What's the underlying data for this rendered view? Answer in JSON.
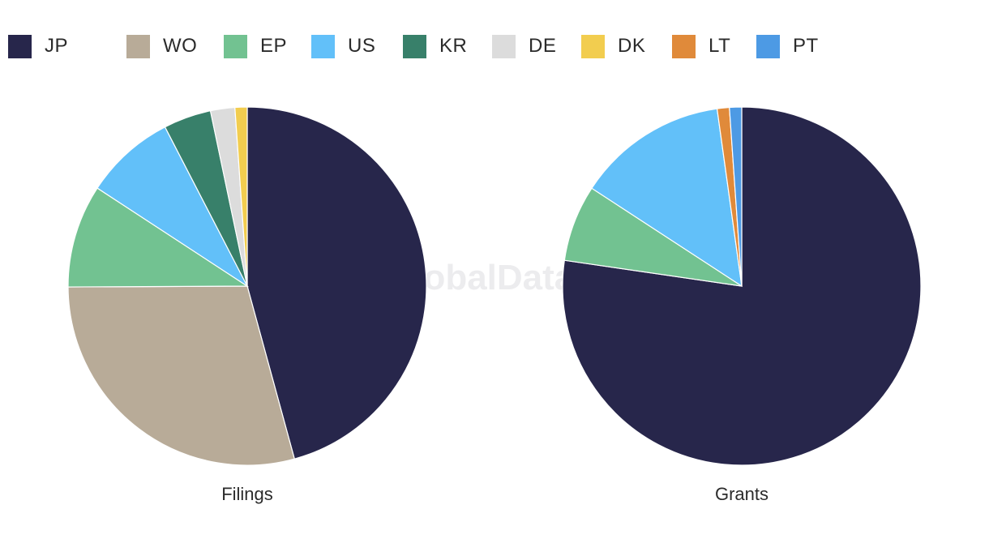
{
  "legend": [
    {
      "code": "JP",
      "color": "#27264b"
    },
    {
      "code": "WO",
      "color": "#b8ab98"
    },
    {
      "code": "EP",
      "color": "#72c291"
    },
    {
      "code": "US",
      "color": "#62c0f9"
    },
    {
      "code": "KR",
      "color": "#38806a"
    },
    {
      "code": "DE",
      "color": "#dcdcdc"
    },
    {
      "code": "DK",
      "color": "#f2cd4f"
    },
    {
      "code": "LT",
      "color": "#e08a3a"
    },
    {
      "code": "PT",
      "color": "#4d9ae4"
    }
  ],
  "watermark": "GlobalData",
  "chart_data": [
    {
      "type": "pie",
      "title": "Filings",
      "slices": [
        {
          "name": "JP",
          "value": 45.8
        },
        {
          "name": "WO",
          "value": 29.2
        },
        {
          "name": "EP",
          "value": 9.3
        },
        {
          "name": "US",
          "value": 8.2
        },
        {
          "name": "KR",
          "value": 4.3
        },
        {
          "name": "DE",
          "value": 2.2
        },
        {
          "name": "DK",
          "value": 1.1
        }
      ]
    },
    {
      "type": "pie",
      "title": "Grants",
      "slices": [
        {
          "name": "JP",
          "value": 77.3
        },
        {
          "name": "EP",
          "value": 6.9
        },
        {
          "name": "US",
          "value": 13.6
        },
        {
          "name": "LT",
          "value": 1.1
        },
        {
          "name": "PT",
          "value": 1.1
        }
      ]
    }
  ]
}
